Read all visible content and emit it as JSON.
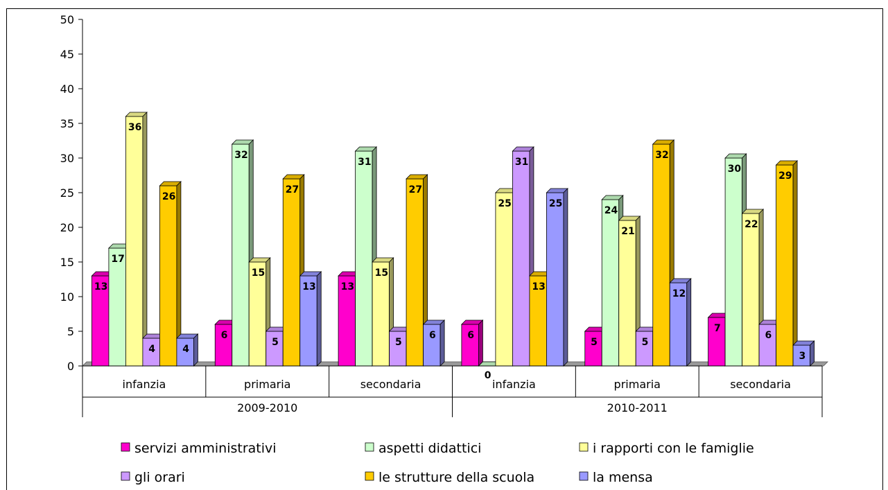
{
  "chart_data": {
    "type": "bar",
    "title": "",
    "xlabel": "",
    "ylabel": "",
    "ylim": [
      0,
      50
    ],
    "yticks": [
      0,
      5,
      10,
      15,
      20,
      25,
      30,
      35,
      40,
      45,
      50
    ],
    "grid": false,
    "three_d": true,
    "legend_position": "bottom",
    "groups": [
      {
        "label": "2009-2010",
        "categories": [
          "infanzia",
          "primaria",
          "secondaria"
        ]
      },
      {
        "label": "2010-2011",
        "categories": [
          "infanzia",
          "primaria",
          "secondaria"
        ]
      }
    ],
    "categories": [
      "infanzia",
      "primaria",
      "secondaria",
      "infanzia",
      "primaria",
      "secondaria"
    ],
    "series": [
      {
        "name": "servizi amministrativi",
        "color": "#ff00cc",
        "values": [
          13,
          6,
          13,
          6,
          5,
          7
        ]
      },
      {
        "name": "aspetti didattici",
        "color": "#ccffcc",
        "values": [
          17,
          32,
          31,
          0,
          24,
          30
        ]
      },
      {
        "name": "i rapporti con le famiglie",
        "color": "#ffff99",
        "values": [
          36,
          15,
          15,
          25,
          21,
          22
        ]
      },
      {
        "name": "gli orari",
        "color": "#cc99ff",
        "values": [
          4,
          5,
          5,
          31,
          5,
          6
        ]
      },
      {
        "name": "le strutture della scuola",
        "color": "#ffcc00",
        "values": [
          26,
          27,
          27,
          13,
          32,
          29
        ]
      },
      {
        "name": "la mensa",
        "color": "#9999ff",
        "values": [
          4,
          13,
          6,
          25,
          12,
          3
        ]
      }
    ]
  }
}
